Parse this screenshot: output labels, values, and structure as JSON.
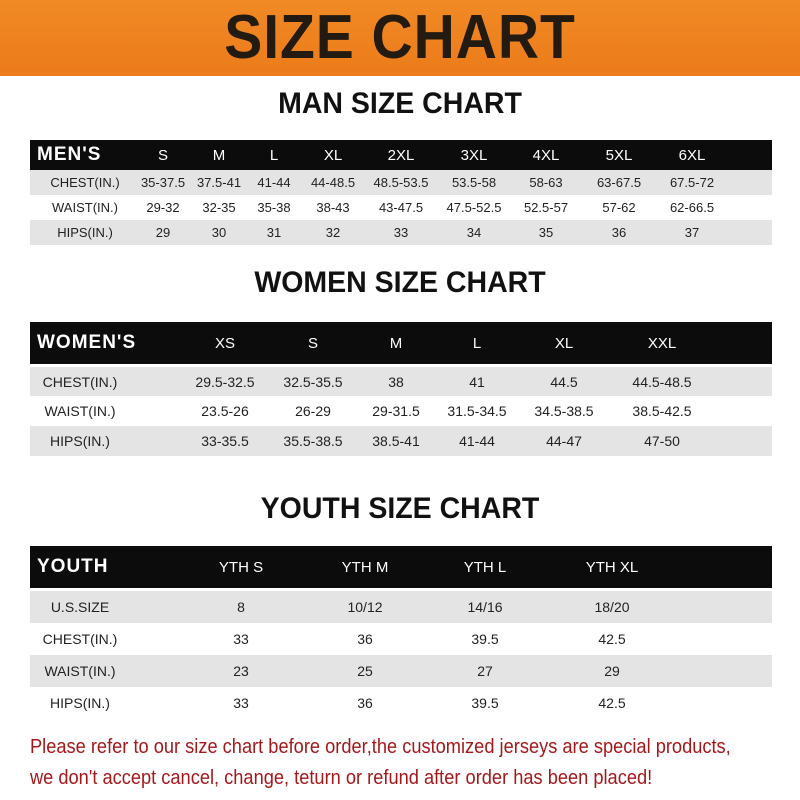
{
  "title": "SIZE CHART",
  "men": {
    "heading": "MAN SIZE CHART",
    "header": [
      "MEN'S",
      "S",
      "M",
      "L",
      "XL",
      "2XL",
      "3XL",
      "4XL",
      "5XL",
      "6XL"
    ],
    "rows": [
      [
        "CHEST(IN.)",
        "35-37.5",
        "37.5-41",
        "41-44",
        "44-48.5",
        "48.5-53.5",
        "53.5-58",
        "58-63",
        "63-67.5",
        "67.5-72"
      ],
      [
        "WAIST(IN.)",
        "29-32",
        "32-35",
        "35-38",
        "38-43",
        "43-47.5",
        "47.5-52.5",
        "52.5-57",
        "57-62",
        "62-66.5"
      ],
      [
        "HIPS(IN.)",
        "29",
        "30",
        "31",
        "32",
        "33",
        "34",
        "35",
        "36",
        "37"
      ]
    ]
  },
  "women": {
    "heading": "WOMEN SIZE CHART",
    "header": [
      "WOMEN'S",
      "XS",
      "S",
      "M",
      "L",
      "XL",
      "XXL"
    ],
    "rows": [
      [
        "CHEST(IN.)",
        "29.5-32.5",
        "32.5-35.5",
        "38",
        "41",
        "44.5",
        "44.5-48.5"
      ],
      [
        "WAIST(IN.)",
        "23.5-26",
        "26-29",
        "29-31.5",
        "31.5-34.5",
        "34.5-38.5",
        "38.5-42.5"
      ],
      [
        "HIPS(IN.)",
        "33-35.5",
        "35.5-38.5",
        "38.5-41",
        "41-44",
        "44-47",
        "47-50"
      ]
    ]
  },
  "youth": {
    "heading": "YOUTH SIZE CHART",
    "header": [
      "YOUTH",
      "YTH S",
      "YTH M",
      "YTH L",
      "YTH XL"
    ],
    "rows": [
      [
        "U.S.SIZE",
        "8",
        "10/12",
        "14/16",
        "18/20"
      ],
      [
        "CHEST(IN.)",
        "33",
        "36",
        "39.5",
        "42.5"
      ],
      [
        "WAIST(IN.)",
        "23",
        "25",
        "27",
        "29"
      ],
      [
        "HIPS(IN.)",
        "33",
        "36",
        "39.5",
        "42.5"
      ]
    ]
  },
  "notice": {
    "line1": "Please refer to our size chart before order,the customized jerseys are special products,",
    "line2": "we don't accept cancel, change, teturn or refund after order has been placed!"
  }
}
